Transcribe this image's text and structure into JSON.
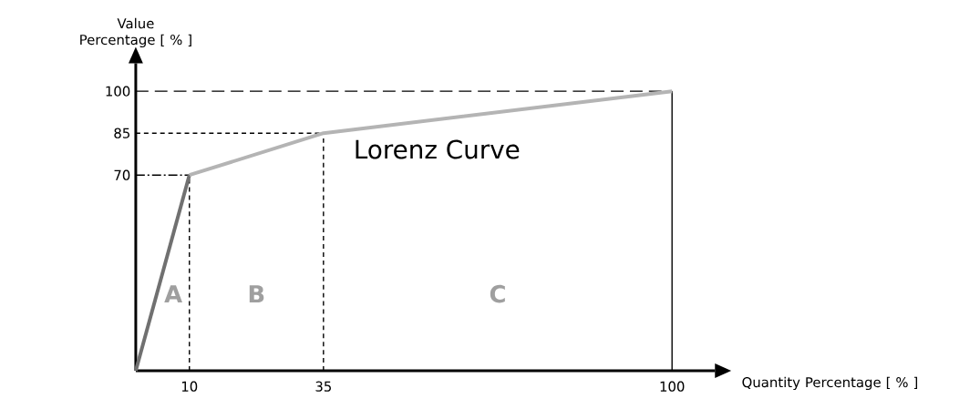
{
  "chart_data": {
    "type": "line",
    "xlabel": "Quantity Percentage [ % ]",
    "ylabel": "Value Percentage [ % ]",
    "series": [
      {
        "x": [
          0,
          10
        ],
        "values": [
          0,
          70
        ],
        "color": "#707070"
      },
      {
        "x": [
          10,
          35,
          100
        ],
        "values": [
          70,
          85,
          100
        ],
        "color": "#b4b4b4"
      }
    ],
    "xlim": [
      0,
      108
    ],
    "ylim": [
      0,
      110
    ],
    "xticks": [
      10,
      35,
      100
    ],
    "yticks": [
      70,
      85,
      100
    ],
    "ref_lines": [
      {
        "axis": "y",
        "value": 100,
        "line_style": "dashed"
      },
      {
        "axis": "y",
        "value": 85,
        "line_style": "dotted"
      },
      {
        "axis": "y",
        "value": 70,
        "line_style": "dashdot"
      },
      {
        "axis": "x",
        "value": 10,
        "line_style": "dotted"
      },
      {
        "axis": "x",
        "value": 35,
        "line_style": "dotted"
      },
      {
        "axis": "x",
        "value": 100,
        "line_style": "solid"
      }
    ],
    "annotations": [
      "Lorenz Curve",
      "A",
      "B",
      "C"
    ],
    "grid": false
  }
}
